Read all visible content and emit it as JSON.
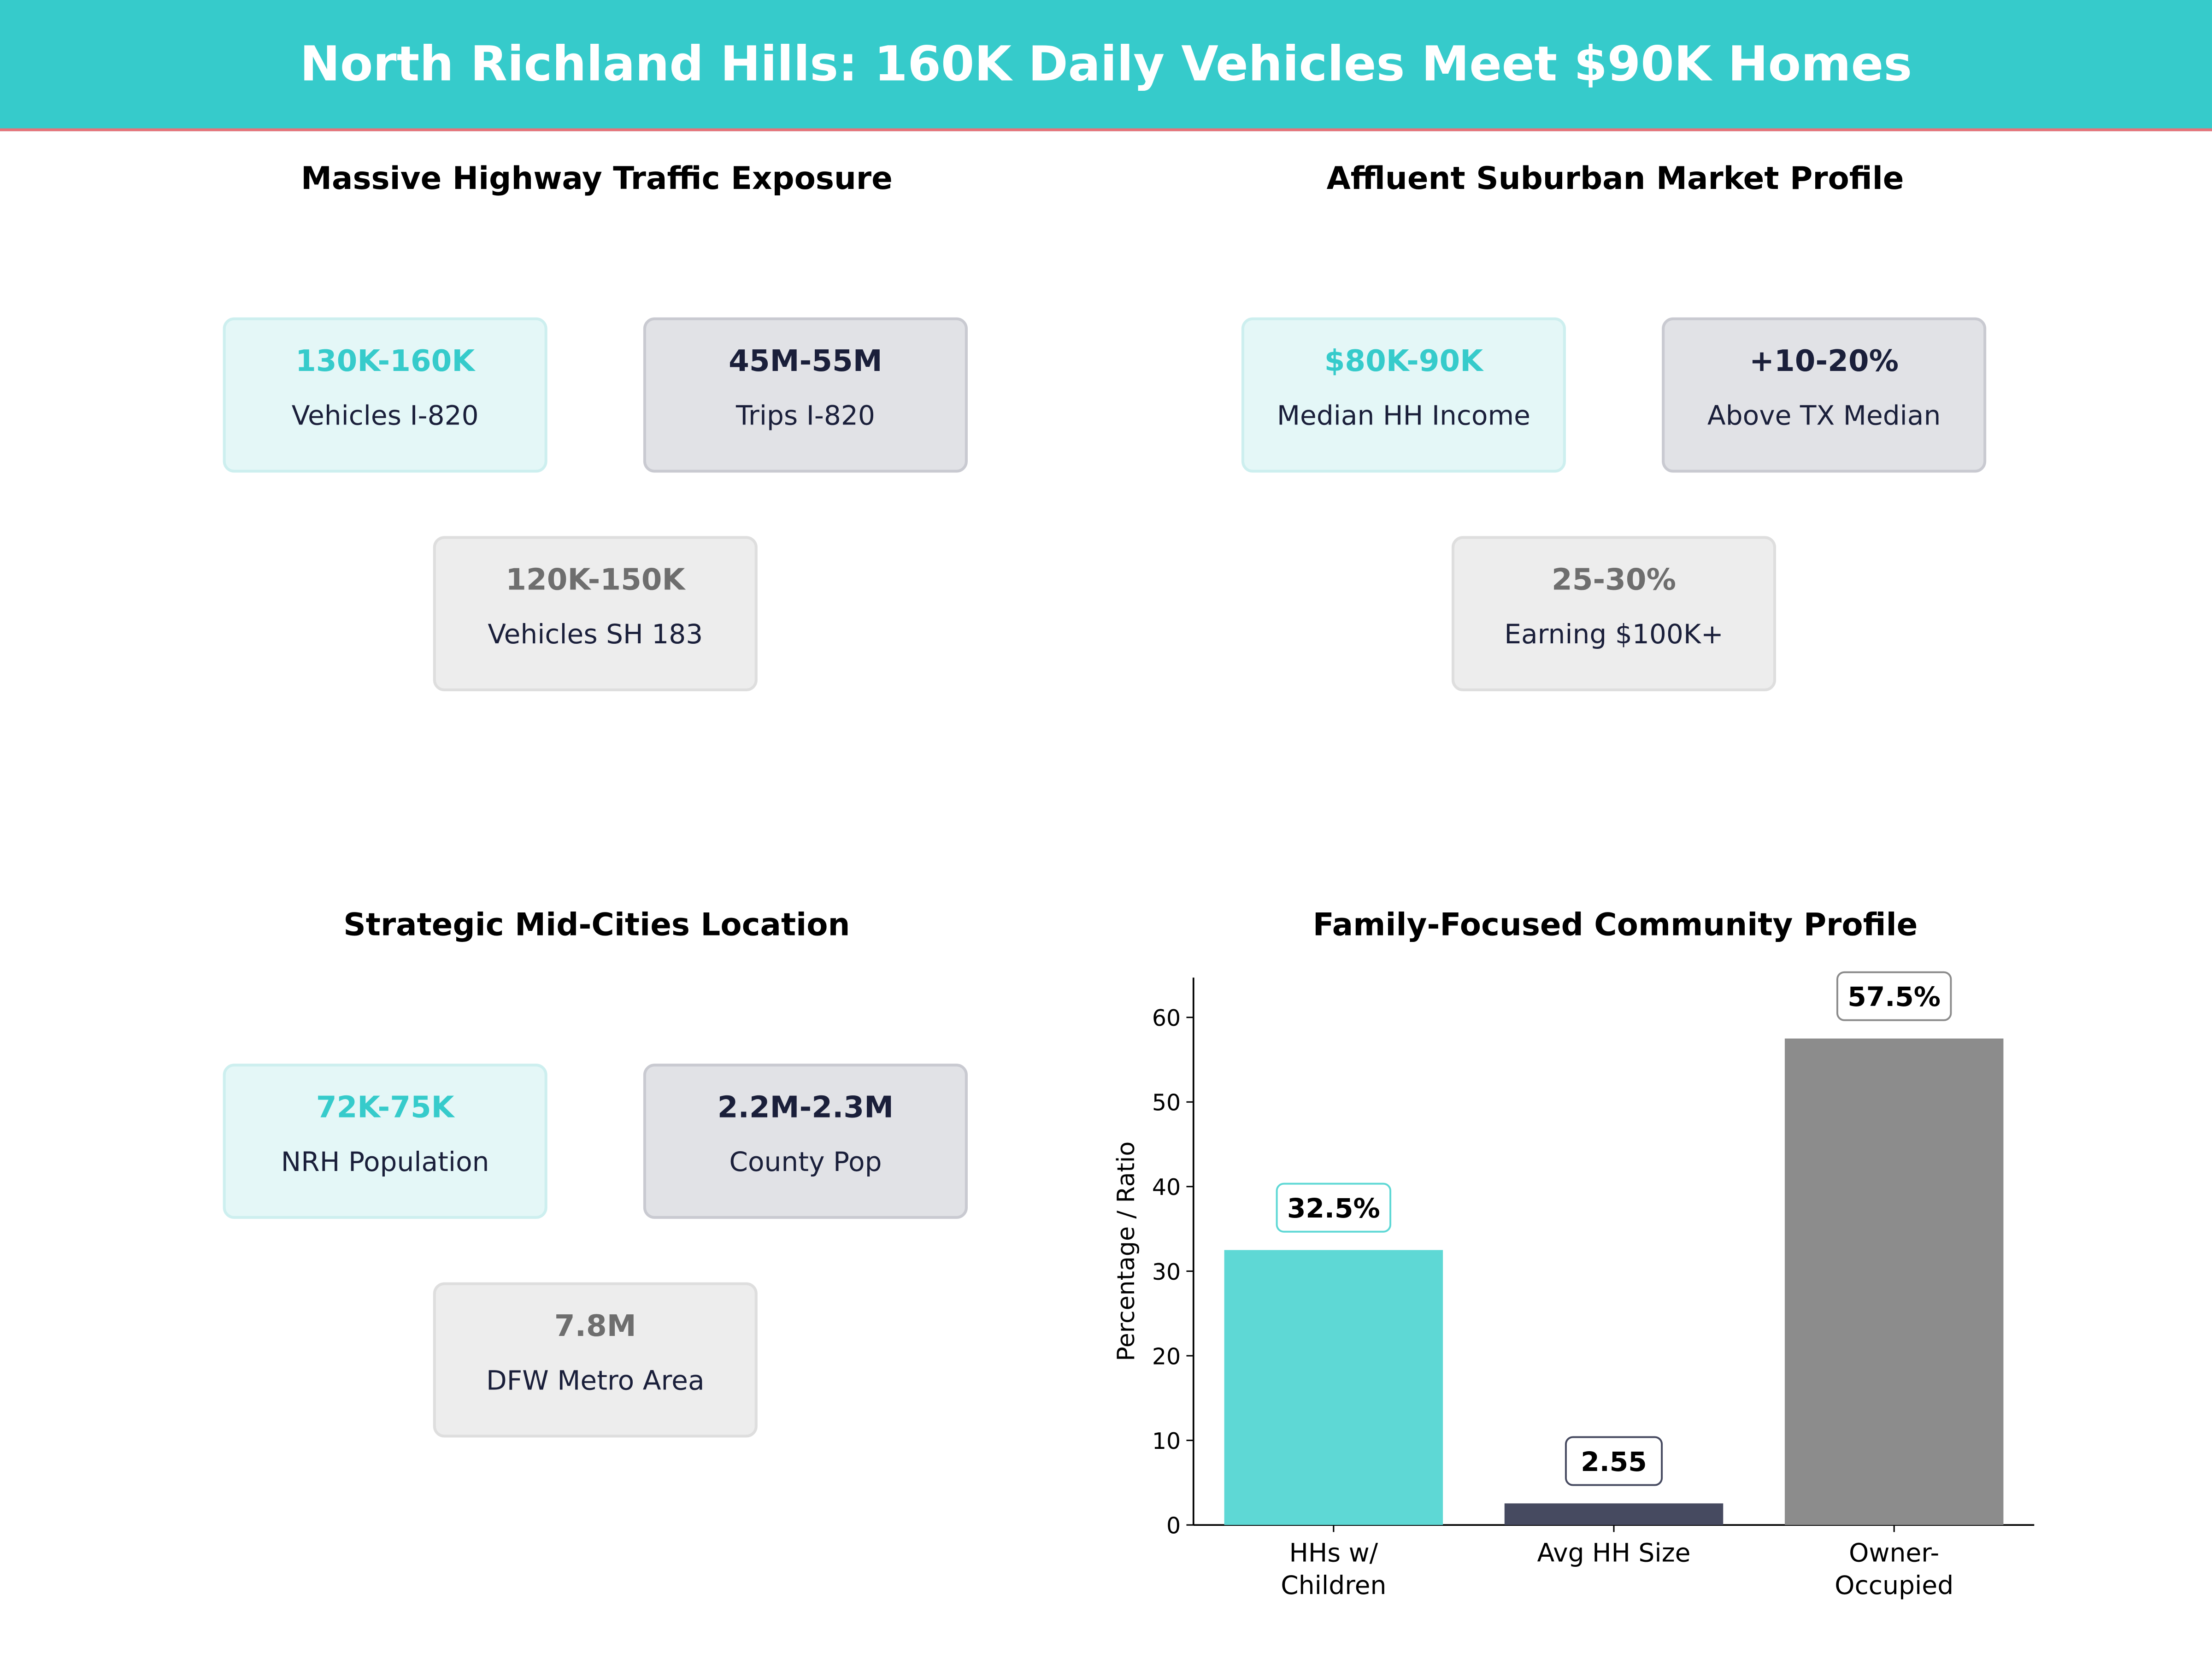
{
  "header": {
    "title": "North Richland Hills: 160K Daily Vehicles Meet $90K Homes",
    "accent": "#36CBCB",
    "underline": "#E8737A"
  },
  "panels": [
    {
      "title": "Massive Highway Traffic Exposure",
      "cards": [
        {
          "value": "130K-160K",
          "label": "Vehicles I-820"
        },
        {
          "value": "45M-55M",
          "label": "Trips I-820"
        },
        {
          "value": "120K-150K",
          "label": "Vehicles SH 183"
        }
      ]
    },
    {
      "title": "Affluent Suburban Market Profile",
      "cards": [
        {
          "value": "$80K-90K",
          "label": "Median HH Income"
        },
        {
          "value": "+10-20%",
          "label": "Above TX Median"
        },
        {
          "value": "25-30%",
          "label": "Earning $100K+"
        }
      ]
    },
    {
      "title": "Strategic Mid-Cities Location",
      "cards": [
        {
          "value": "72K-75K",
          "label": "NRH Population"
        },
        {
          "value": "2.2M-2.3M",
          "label": "County Pop"
        },
        {
          "value": "7.8M",
          "label": "DFW Metro Area"
        }
      ]
    }
  ],
  "chart_data": {
    "type": "bar",
    "title": "Family-Focused Community Profile",
    "ylabel": "Percentage / Ratio",
    "xlabel": "",
    "categories": [
      "HHs w/\nChildren",
      "Avg HH Size",
      "Owner-\nOccupied"
    ],
    "category_lines": [
      [
        "HHs w/",
        "Children"
      ],
      [
        "Avg HH Size"
      ],
      [
        "Owner-",
        "Occupied"
      ]
    ],
    "values": [
      32.5,
      2.55,
      57.5
    ],
    "data_labels": [
      "32.5%",
      "2.55",
      "57.5%"
    ],
    "colors": [
      "#5ED8D5",
      "#464A60",
      "#8C8C8C"
    ],
    "ylim": [
      0,
      64.7
    ],
    "yticks": [
      0,
      10,
      20,
      30,
      40,
      50,
      60
    ],
    "grid": false
  }
}
